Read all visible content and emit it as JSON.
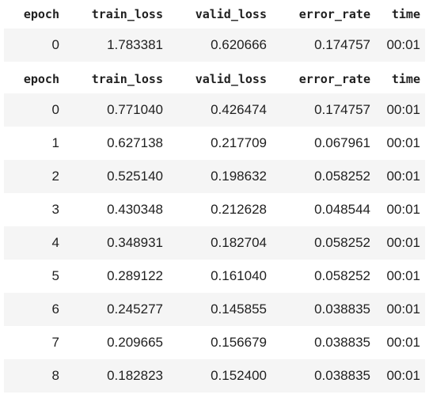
{
  "columns": [
    "epoch",
    "train_loss",
    "valid_loss",
    "error_rate",
    "time"
  ],
  "table1": {
    "rows": [
      [
        "0",
        "1.783381",
        "0.620666",
        "0.174757",
        "00:01"
      ]
    ]
  },
  "table2": {
    "rows": [
      [
        "0",
        "0.771040",
        "0.426474",
        "0.174757",
        "00:01"
      ],
      [
        "1",
        "0.627138",
        "0.217709",
        "0.067961",
        "00:01"
      ],
      [
        "2",
        "0.525140",
        "0.198632",
        "0.058252",
        "00:01"
      ],
      [
        "3",
        "0.430348",
        "0.212628",
        "0.048544",
        "00:01"
      ],
      [
        "4",
        "0.348931",
        "0.182704",
        "0.058252",
        "00:01"
      ],
      [
        "5",
        "0.289122",
        "0.161040",
        "0.058252",
        "00:01"
      ],
      [
        "6",
        "0.245277",
        "0.145855",
        "0.038835",
        "00:01"
      ],
      [
        "7",
        "0.209665",
        "0.156679",
        "0.038835",
        "00:01"
      ],
      [
        "8",
        "0.182823",
        "0.152400",
        "0.038835",
        "00:01"
      ]
    ]
  }
}
